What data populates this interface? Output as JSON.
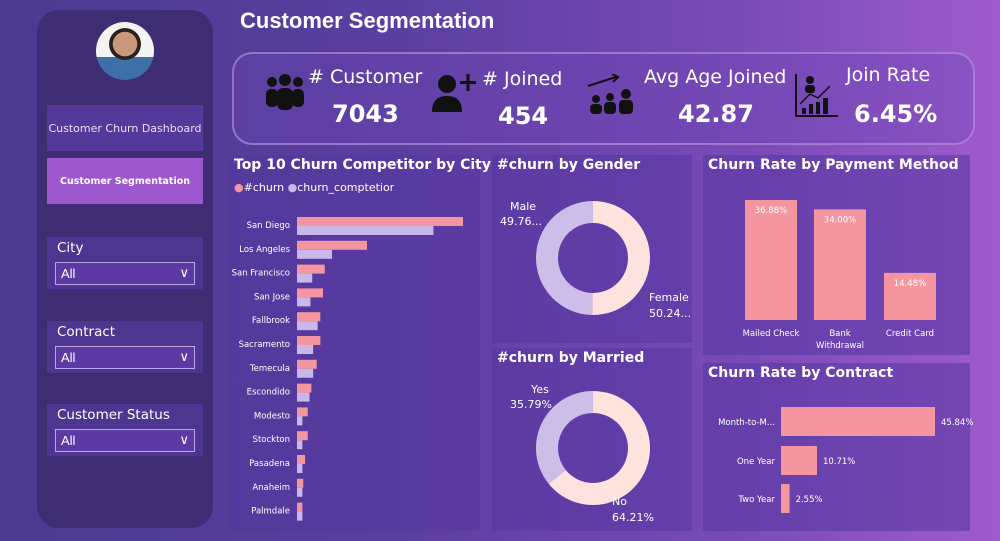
{
  "sidebar": {
    "nav": [
      {
        "label": "Customer Churn Dashboard"
      },
      {
        "label": "Customer Segmentation"
      }
    ],
    "slicers": [
      {
        "label": "City",
        "value": "All"
      },
      {
        "label": "Contract",
        "value": "All"
      },
      {
        "label": "Customer Status",
        "value": "All"
      }
    ]
  },
  "header": {
    "title": "Customer Segmentation"
  },
  "kpis": [
    {
      "label": "# Customer",
      "value": "7043",
      "icon": "people-group-icon"
    },
    {
      "label": "# Joined",
      "value": "454",
      "icon": "add-user-icon"
    },
    {
      "label": "Avg Age Joined",
      "value": "42.87",
      "icon": "growth-people-icon"
    },
    {
      "label": "Join Rate",
      "value": "6.45%",
      "icon": "chart-people-icon"
    }
  ],
  "colors": {
    "churn": "#f4959f",
    "competitor": "#c9b6ea",
    "peach": "#fde2dd",
    "lavender": "#cdbde9"
  },
  "chart_data": [
    {
      "type": "bar",
      "orientation": "horizontal",
      "title": "Top 10 Churn Competitor by City",
      "legend": "top-left",
      "categories": [
        "San Diego",
        "Los Angeles",
        "San Francisco",
        "San Jose",
        "Fallbrook",
        "Sacramento",
        "Temecula",
        "Escondido",
        "Modesto",
        "Stockton",
        "Pasadena",
        "Anaheim",
        "Palmdale"
      ],
      "series": [
        {
          "name": "#churn",
          "values": [
            185,
            78,
            31,
            29,
            26,
            26,
            22,
            16,
            12,
            12,
            9,
            7,
            6
          ]
        },
        {
          "name": "churn_comptetior",
          "values": [
            152,
            39,
            17,
            15,
            23,
            18,
            18,
            14,
            6,
            6,
            6,
            6,
            6
          ]
        }
      ]
    },
    {
      "type": "pie",
      "title": "#churn by Gender",
      "donut": true,
      "slices": [
        {
          "label": "Female",
          "value": 50.24,
          "text": "50.24..."
        },
        {
          "label": "Male",
          "value": 49.76,
          "text": "49.76..."
        }
      ]
    },
    {
      "type": "pie",
      "title": "#churn by Married",
      "donut": true,
      "slices": [
        {
          "label": "No",
          "value": 64.21,
          "text": "64.21%"
        },
        {
          "label": "Yes",
          "value": 35.79,
          "text": "35.79%"
        }
      ]
    },
    {
      "type": "bar",
      "title": "Churn Rate by Payment Method",
      "categories": [
        "Mailed Check",
        "Bank Withdrawal",
        "Credit Card"
      ],
      "values": [
        36.88,
        34.0,
        14.48
      ],
      "labels": [
        "36.88%",
        "34.00%",
        "14.48%"
      ]
    },
    {
      "type": "bar",
      "orientation": "horizontal",
      "title": "Churn Rate by Contract",
      "categories": [
        "Month-to-M...",
        "One Year",
        "Two Year"
      ],
      "values": [
        45.84,
        10.71,
        2.55
      ],
      "labels": [
        "45.84%",
        "10.71%",
        "2.55%"
      ]
    }
  ]
}
